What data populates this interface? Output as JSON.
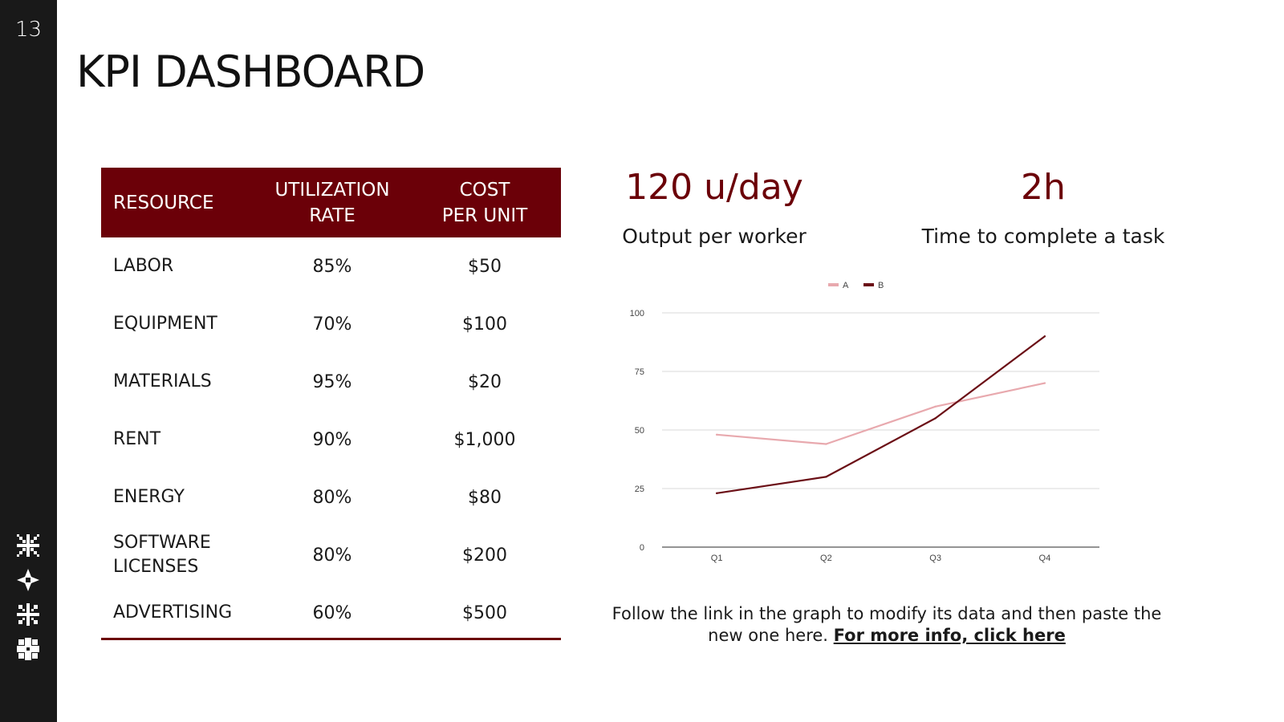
{
  "slide": {
    "page_number": "13",
    "title": "KPI DASHBOARD",
    "decorations": [
      "snowflake-icon",
      "compass-star-icon",
      "snowflake-icon",
      "snowflake-icon"
    ]
  },
  "table": {
    "headers": [
      [
        "RESOURCE"
      ],
      [
        "UTILIZATION",
        "RATE"
      ],
      [
        "COST",
        "PER UNIT"
      ]
    ],
    "rows": [
      {
        "resource": [
          "LABOR"
        ],
        "utilization": "85%",
        "cost": "$50"
      },
      {
        "resource": [
          "EQUIPMENT"
        ],
        "utilization": "70%",
        "cost": "$100"
      },
      {
        "resource": [
          "MATERIALS"
        ],
        "utilization": "95%",
        "cost": "$20"
      },
      {
        "resource": [
          "RENT"
        ],
        "utilization": "90%",
        "cost": "$1,000"
      },
      {
        "resource": [
          "ENERGY"
        ],
        "utilization": "80%",
        "cost": "$80"
      },
      {
        "resource": [
          "SOFTWARE",
          "LICENSES"
        ],
        "utilization": "80%",
        "cost": "$200"
      },
      {
        "resource": [
          "ADVERTISING"
        ],
        "utilization": "60%",
        "cost": "$500"
      }
    ],
    "header_color": "#6b0008"
  },
  "kpis": [
    {
      "value": "120 u/day",
      "label": "Output per worker"
    },
    {
      "value": "2h",
      "label": "Time to complete a task"
    }
  ],
  "chart_data": {
    "type": "line",
    "categories": [
      "Q1",
      "Q2",
      "Q3",
      "Q4"
    ],
    "series": [
      {
        "name": "A",
        "values": [
          48,
          44,
          60,
          70
        ],
        "color": "#e8a9ae"
      },
      {
        "name": "B",
        "values": [
          23,
          30,
          55,
          90
        ],
        "color": "#6b0f16"
      }
    ],
    "ylim": [
      0,
      100
    ],
    "yticks": [
      0,
      25,
      50,
      75,
      100
    ],
    "grid": true,
    "legend": "top-center"
  },
  "footnote": {
    "text": "Follow the link in the graph to modify its data and then paste the new one here.",
    "link_text": "For more info, click here"
  }
}
